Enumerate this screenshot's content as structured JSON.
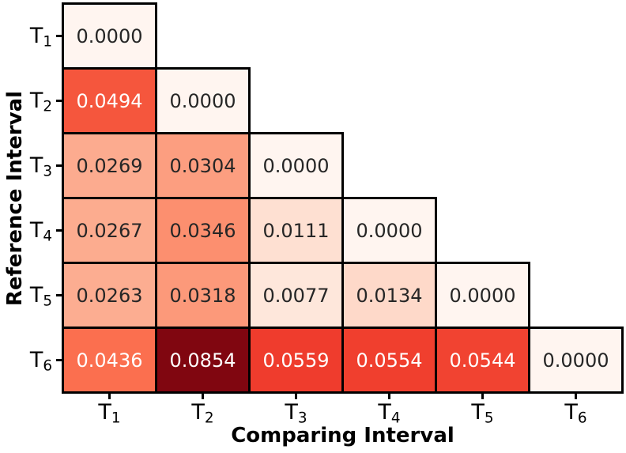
{
  "chart_data": {
    "type": "heatmap",
    "title": "",
    "xlabel": "Comparing Interval",
    "ylabel": "Reference Interval",
    "categories": [
      "T1",
      "T2",
      "T3",
      "T4",
      "T5",
      "T6"
    ],
    "tick_labels": [
      {
        "base": "T",
        "sub": "1"
      },
      {
        "base": "T",
        "sub": "2"
      },
      {
        "base": "T",
        "sub": "3"
      },
      {
        "base": "T",
        "sub": "4"
      },
      {
        "base": "T",
        "sub": "5"
      },
      {
        "base": "T",
        "sub": "6"
      }
    ],
    "shape": "lower-triangular",
    "colormap": "Reds",
    "grid_line_color": "#000000",
    "values": [
      [
        0.0,
        null,
        null,
        null,
        null,
        null
      ],
      [
        0.0494,
        0.0,
        null,
        null,
        null,
        null
      ],
      [
        0.0269,
        0.0304,
        0.0,
        null,
        null,
        null
      ],
      [
        0.0267,
        0.0346,
        0.0111,
        0.0,
        null,
        null
      ],
      [
        0.0263,
        0.0318,
        0.0077,
        0.0134,
        0.0,
        null
      ],
      [
        0.0436,
        0.0854,
        0.0559,
        0.0554,
        0.0544,
        0.0
      ]
    ],
    "cells": [
      [
        {
          "label": "0.0000",
          "bg": "#fff5f0",
          "fg": "#262626"
        }
      ],
      [
        {
          "label": "0.0494",
          "bg": "#f5563d",
          "fg": "#ffffff"
        },
        {
          "label": "0.0000",
          "bg": "#fff5f0",
          "fg": "#262626"
        }
      ],
      [
        {
          "label": "0.0269",
          "bg": "#fcab8f",
          "fg": "#262626"
        },
        {
          "label": "0.0304",
          "bg": "#fc9e80",
          "fg": "#262626"
        },
        {
          "label": "0.0000",
          "bg": "#fff5f0",
          "fg": "#262626"
        }
      ],
      [
        {
          "label": "0.0267",
          "bg": "#fcac8f",
          "fg": "#262626"
        },
        {
          "label": "0.0346",
          "bg": "#fc8f6f",
          "fg": "#262626"
        },
        {
          "label": "0.0111",
          "bg": "#fee0d2",
          "fg": "#262626"
        },
        {
          "label": "0.0000",
          "bg": "#fff5f0",
          "fg": "#262626"
        }
      ],
      [
        {
          "label": "0.0263",
          "bg": "#fcad91",
          "fg": "#262626"
        },
        {
          "label": "0.0318",
          "bg": "#fc997a",
          "fg": "#262626"
        },
        {
          "label": "0.0077",
          "bg": "#fee7db",
          "fg": "#262626"
        },
        {
          "label": "0.0134",
          "bg": "#fed9c9",
          "fg": "#262626"
        },
        {
          "label": "0.0000",
          "bg": "#fff5f0",
          "fg": "#262626"
        }
      ],
      [
        {
          "label": "0.0436",
          "bg": "#fb6f4f",
          "fg": "#ffffff"
        },
        {
          "label": "0.0854",
          "bg": "#800610",
          "fg": "#ffffff"
        },
        {
          "label": "0.0559",
          "bg": "#ef3c2d",
          "fg": "#ffffff"
        },
        {
          "label": "0.0554",
          "bg": "#f03f2e",
          "fg": "#ffffff"
        },
        {
          "label": "0.0544",
          "bg": "#f14331",
          "fg": "#ffffff"
        },
        {
          "label": "0.0000",
          "bg": "#fff5f0",
          "fg": "#262626"
        }
      ]
    ]
  }
}
